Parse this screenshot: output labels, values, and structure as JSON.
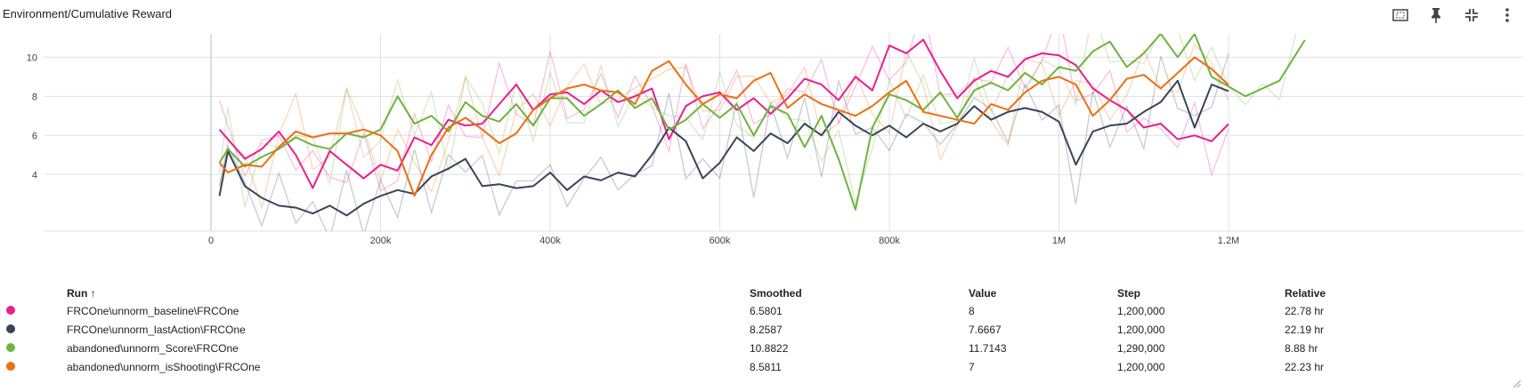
{
  "card": {
    "title": "Environment/Cumulative Reward",
    "tools": [
      "fit-domain-icon",
      "pin-icon",
      "collapse-icon",
      "more-vert-icon"
    ]
  },
  "colors": {
    "baseline": "#e91e8c",
    "lastAction": "#37455a",
    "score": "#6fb33f",
    "isShooting": "#ec6f10",
    "grid": "#e0e0e0",
    "axis": "#9e9e9e"
  },
  "chart_data": {
    "type": "line",
    "title": "Environment/Cumulative Reward",
    "xlabel": "",
    "ylabel": "",
    "xlim": [
      -100000,
      1400000
    ],
    "ylim": [
      1.1,
      11.2
    ],
    "x_ticks": [
      0,
      200000,
      400000,
      600000,
      800000,
      1000000,
      1200000
    ],
    "x_tick_labels": [
      "0",
      "200k",
      "400k",
      "600k",
      "800k",
      "1M",
      "1.2M"
    ],
    "y_ticks": [
      4,
      6,
      8,
      10
    ],
    "y_tick_labels": [
      "4",
      "6",
      "8",
      "10"
    ],
    "grid": true,
    "series": [
      {
        "name": "FRCOne\\unnorm_baseline\\FRCOne",
        "color": "#e91e8c",
        "x": [
          10000,
          40000,
          60000,
          80000,
          100000,
          120000,
          140000,
          160000,
          180000,
          200000,
          220000,
          240000,
          260000,
          280000,
          300000,
          320000,
          340000,
          360000,
          380000,
          400000,
          420000,
          440000,
          460000,
          480000,
          500000,
          520000,
          540000,
          560000,
          580000,
          600000,
          620000,
          640000,
          660000,
          680000,
          700000,
          720000,
          740000,
          760000,
          780000,
          800000,
          820000,
          840000,
          860000,
          880000,
          900000,
          920000,
          940000,
          960000,
          980000,
          1000000,
          1020000,
          1040000,
          1060000,
          1080000,
          1100000,
          1120000,
          1140000,
          1160000,
          1180000,
          1200000
        ],
        "y": [
          6.3,
          4.8,
          5.3,
          6.2,
          5.0,
          3.3,
          5.2,
          4.5,
          3.8,
          4.5,
          4.2,
          5.9,
          5.5,
          6.8,
          6.5,
          6.6,
          7.6,
          8.6,
          7.3,
          8.1,
          8.2,
          7.6,
          8.3,
          7.7,
          8.0,
          8.4,
          5.8,
          7.5,
          8.0,
          8.2,
          7.3,
          7.9,
          7.1,
          7.9,
          8.9,
          8.6,
          7.8,
          9.0,
          8.3,
          10.6,
          10.2,
          10.9,
          9.3,
          7.9,
          8.8,
          9.3,
          9.0,
          9.9,
          10.2,
          10.1,
          9.6,
          8.4,
          7.8,
          7.3,
          6.4,
          6.6,
          5.8,
          6.0,
          5.7,
          6.58
        ]
      },
      {
        "name": "FRCOne\\unnorm_lastAction\\FRCOne",
        "color": "#37455a",
        "x": [
          10000,
          20000,
          40000,
          60000,
          80000,
          100000,
          120000,
          140000,
          160000,
          180000,
          200000,
          220000,
          240000,
          260000,
          280000,
          300000,
          320000,
          340000,
          360000,
          380000,
          400000,
          420000,
          440000,
          460000,
          480000,
          500000,
          520000,
          540000,
          560000,
          580000,
          600000,
          620000,
          640000,
          660000,
          680000,
          700000,
          720000,
          740000,
          760000,
          780000,
          800000,
          820000,
          840000,
          860000,
          880000,
          900000,
          920000,
          940000,
          960000,
          980000,
          1000000,
          1020000,
          1040000,
          1060000,
          1080000,
          1100000,
          1120000,
          1140000,
          1160000,
          1180000,
          1200000
        ],
        "y": [
          2.9,
          5.2,
          3.4,
          2.8,
          2.4,
          2.3,
          2.0,
          2.4,
          1.9,
          2.5,
          2.9,
          3.2,
          3.0,
          3.9,
          4.3,
          4.8,
          3.4,
          3.5,
          3.3,
          3.4,
          4.1,
          3.2,
          3.9,
          3.7,
          4.1,
          3.9,
          5.0,
          6.4,
          5.7,
          3.8,
          4.6,
          5.9,
          5.2,
          6.1,
          5.6,
          6.6,
          6.0,
          7.2,
          6.5,
          6.0,
          6.5,
          5.9,
          6.6,
          6.2,
          6.6,
          7.5,
          6.8,
          7.2,
          7.4,
          7.2,
          6.7,
          4.5,
          6.2,
          6.5,
          6.6,
          7.2,
          7.7,
          8.8,
          6.4,
          8.6,
          8.26
        ]
      },
      {
        "name": "abandoned\\unnorm_Score\\FRCOne",
        "color": "#6fb33f",
        "x": [
          10000,
          20000,
          40000,
          60000,
          80000,
          100000,
          120000,
          140000,
          160000,
          180000,
          200000,
          220000,
          240000,
          260000,
          280000,
          300000,
          320000,
          340000,
          360000,
          380000,
          400000,
          420000,
          440000,
          460000,
          480000,
          500000,
          520000,
          540000,
          560000,
          580000,
          600000,
          620000,
          640000,
          660000,
          680000,
          700000,
          720000,
          740000,
          760000,
          780000,
          800000,
          820000,
          840000,
          860000,
          880000,
          900000,
          920000,
          940000,
          960000,
          980000,
          1000000,
          1020000,
          1040000,
          1060000,
          1080000,
          1100000,
          1120000,
          1140000,
          1160000,
          1180000,
          1200000,
          1220000,
          1240000,
          1260000,
          1290000
        ],
        "y": [
          4.6,
          5.3,
          4.4,
          4.9,
          5.3,
          5.9,
          5.5,
          5.3,
          6.1,
          5.9,
          6.3,
          8.0,
          6.6,
          7.0,
          6.2,
          7.7,
          7.0,
          6.7,
          7.6,
          6.5,
          7.9,
          7.9,
          7.0,
          7.6,
          8.3,
          7.4,
          7.9,
          6.3,
          6.8,
          7.6,
          6.9,
          7.6,
          6.0,
          7.5,
          7.1,
          5.4,
          7.0,
          4.8,
          2.2,
          6.4,
          8.1,
          7.8,
          7.3,
          8.2,
          6.9,
          8.3,
          8.7,
          8.3,
          9.2,
          8.6,
          9.5,
          9.3,
          10.3,
          10.8,
          9.5,
          10.2,
          11.2,
          10.0,
          11.2,
          9.0,
          8.5,
          8.0,
          8.4,
          8.8,
          10.88
        ]
      },
      {
        "name": "abandoned\\unnorm_isShooting\\FRCOne",
        "color": "#ec6f10",
        "x": [
          10000,
          20000,
          40000,
          60000,
          80000,
          100000,
          120000,
          140000,
          160000,
          180000,
          200000,
          220000,
          240000,
          260000,
          280000,
          300000,
          320000,
          340000,
          360000,
          380000,
          400000,
          420000,
          440000,
          460000,
          480000,
          500000,
          520000,
          540000,
          560000,
          580000,
          600000,
          620000,
          640000,
          660000,
          680000,
          700000,
          720000,
          740000,
          760000,
          780000,
          800000,
          820000,
          840000,
          860000,
          880000,
          900000,
          920000,
          940000,
          960000,
          980000,
          1000000,
          1020000,
          1040000,
          1060000,
          1080000,
          1100000,
          1120000,
          1140000,
          1160000,
          1180000,
          1200000
        ],
        "y": [
          4.6,
          4.1,
          4.5,
          4.4,
          5.4,
          6.2,
          5.9,
          6.1,
          6.1,
          6.3,
          6.0,
          5.2,
          2.9,
          5.0,
          6.4,
          6.9,
          6.3,
          5.6,
          6.1,
          7.3,
          7.9,
          8.4,
          8.6,
          8.3,
          8.2,
          7.6,
          9.3,
          9.8,
          8.6,
          7.6,
          8.1,
          7.9,
          8.8,
          9.2,
          7.4,
          8.1,
          7.6,
          7.3,
          7.0,
          7.5,
          8.2,
          8.8,
          7.2,
          7.0,
          6.8,
          6.6,
          7.6,
          7.3,
          8.2,
          8.8,
          9.0,
          8.6,
          7.0,
          7.8,
          8.9,
          9.1,
          8.4,
          9.2,
          10.0,
          9.4,
          8.58
        ]
      }
    ]
  },
  "table": {
    "headers": {
      "run": "Run ↑",
      "smoothed": "Smoothed",
      "value": "Value",
      "step": "Step",
      "relative": "Relative"
    },
    "rows": [
      {
        "run": "FRCOne\\unnorm_baseline\\FRCOne",
        "smoothed": "6.5801",
        "value": "8",
        "step": "1,200,000",
        "relative": "22.78 hr",
        "color": "#e91e8c"
      },
      {
        "run": "FRCOne\\unnorm_lastAction\\FRCOne",
        "smoothed": "8.2587",
        "value": "7.6667",
        "step": "1,200,000",
        "relative": "22.19 hr",
        "color": "#37455a"
      },
      {
        "run": "abandoned\\unnorm_Score\\FRCOne",
        "smoothed": "10.8822",
        "value": "11.7143",
        "step": "1,290,000",
        "relative": "8.88 hr",
        "color": "#6fb33f"
      },
      {
        "run": "abandoned\\unnorm_isShooting\\FRCOne",
        "smoothed": "8.5811",
        "value": "7",
        "step": "1,200,000",
        "relative": "22.23 hr",
        "color": "#ec6f10"
      }
    ]
  }
}
